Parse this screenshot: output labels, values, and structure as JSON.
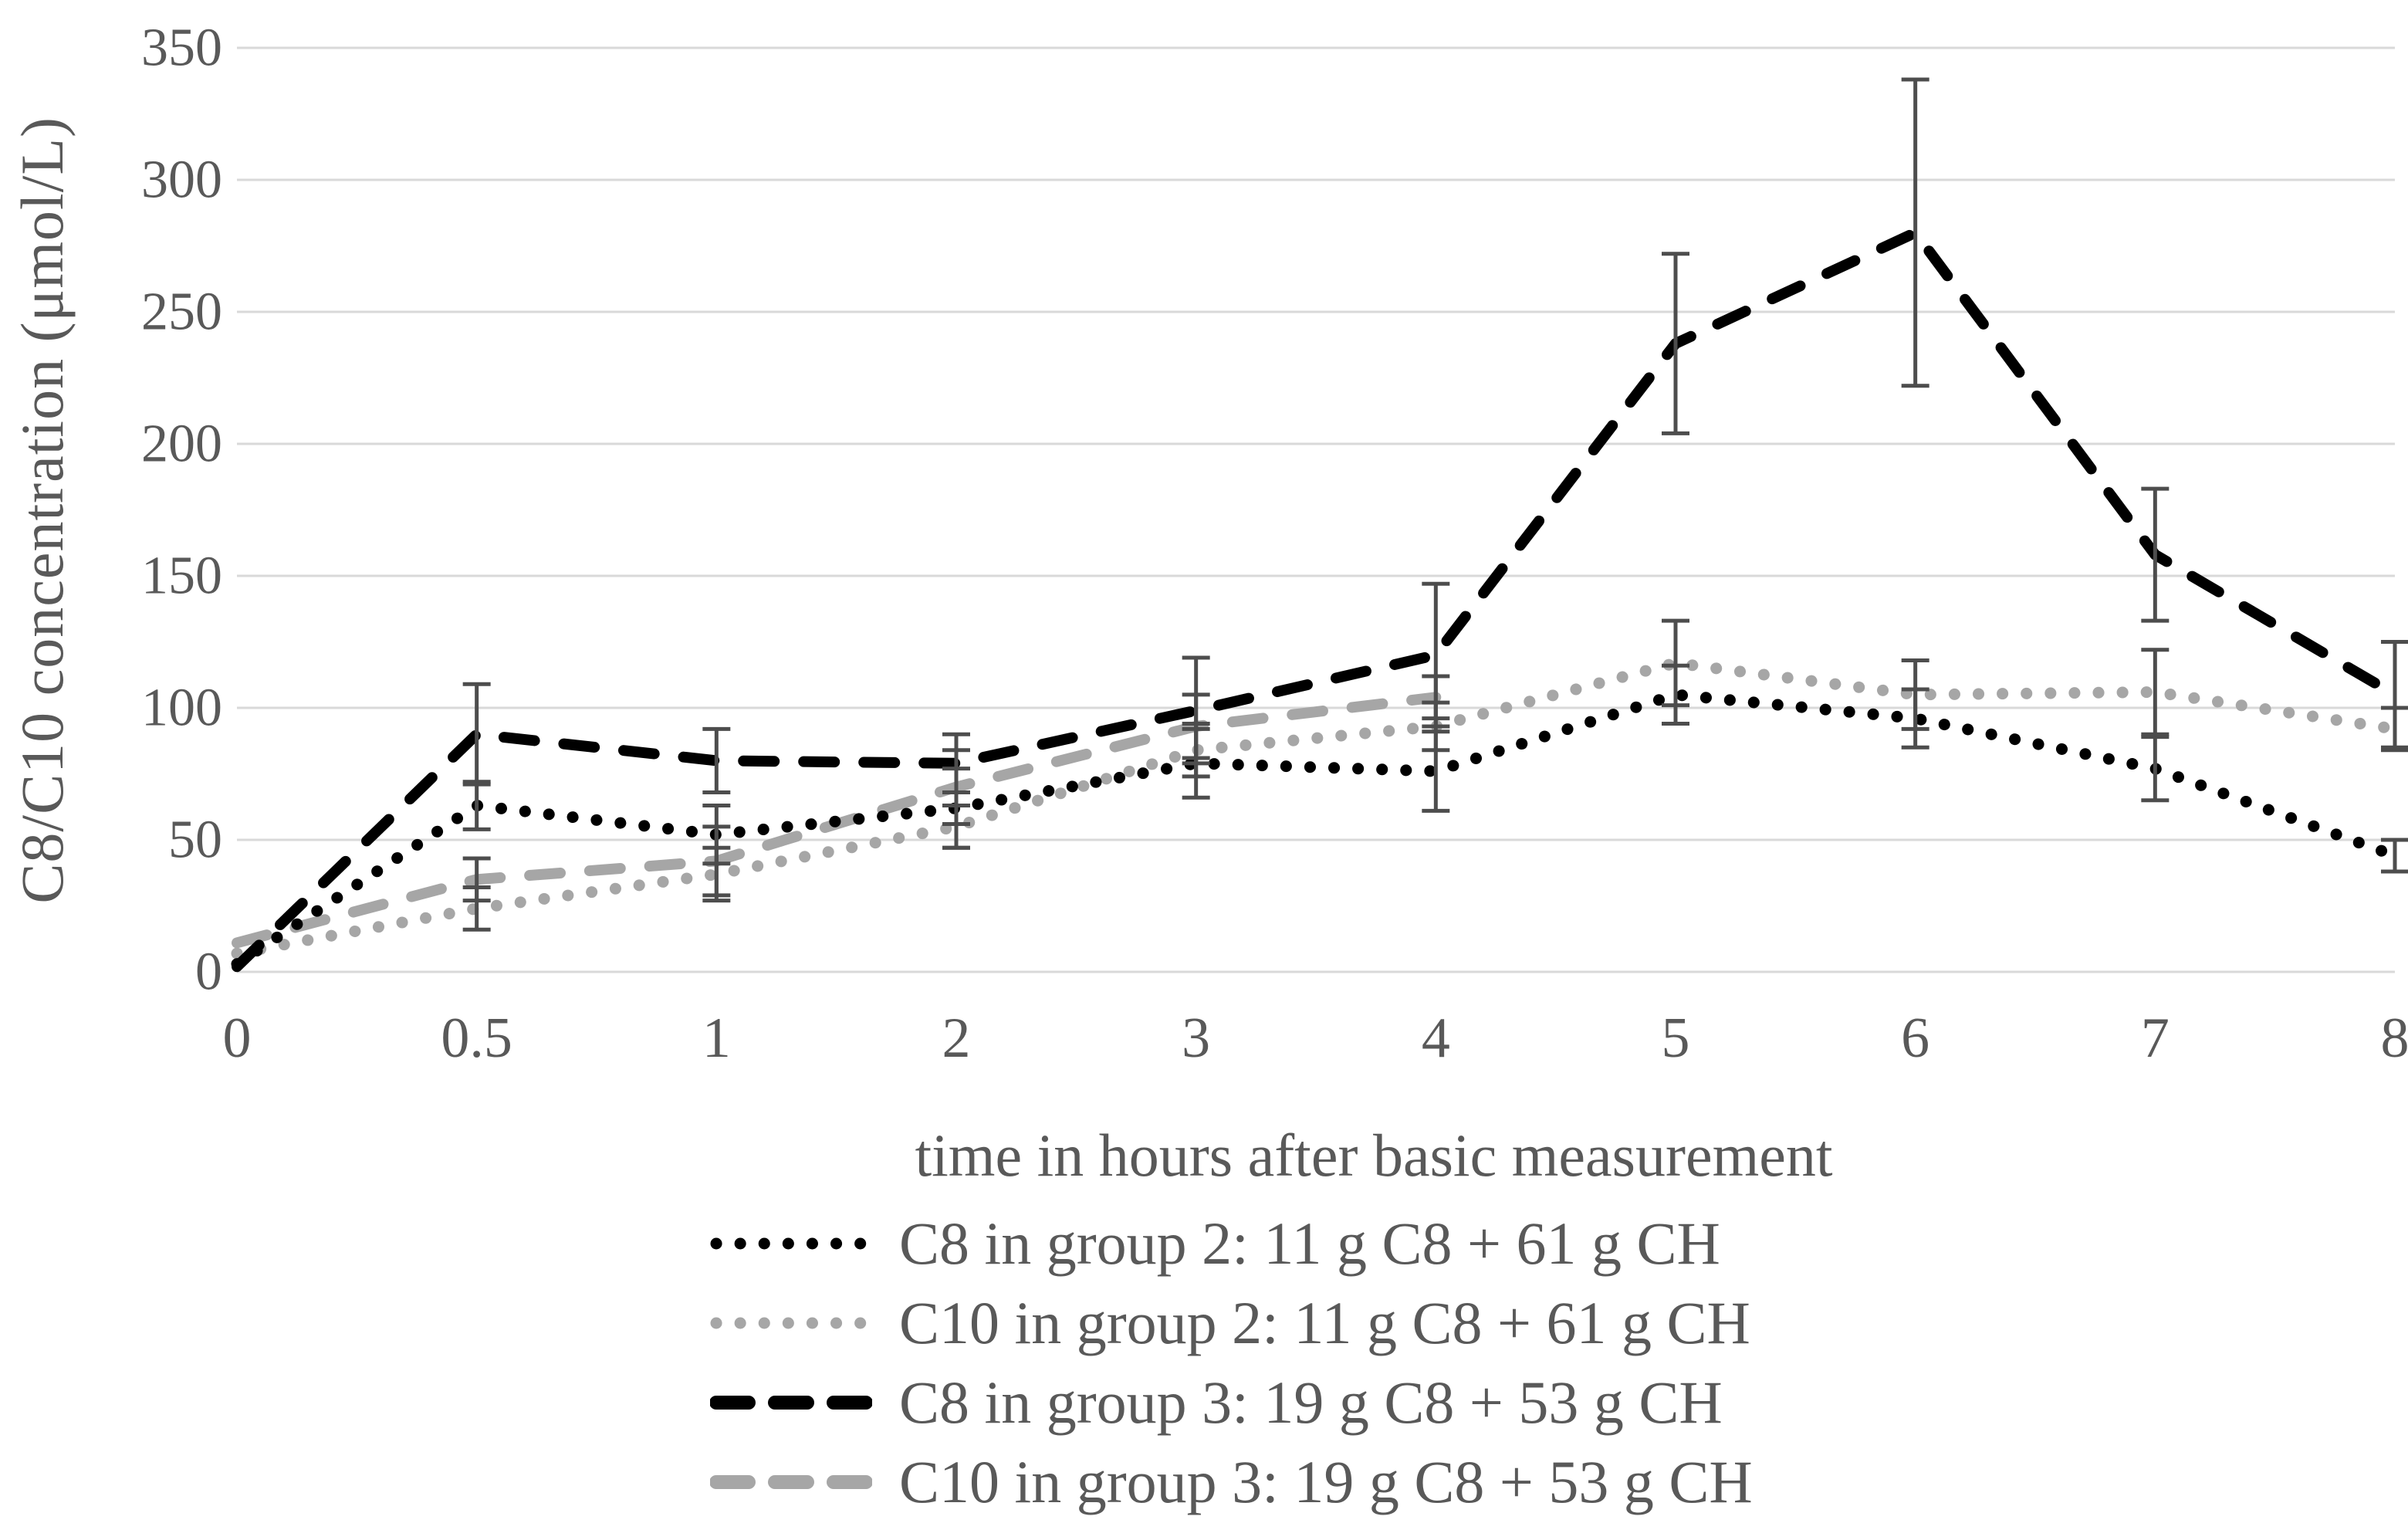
{
  "chart_data": {
    "type": "line",
    "title": "",
    "xlabel": "time in hours after basic measurement",
    "ylabel": "C8/C10 concentration (μmol/L)",
    "ylim": [
      0,
      350
    ],
    "yticks": [
      0,
      50,
      100,
      150,
      200,
      250,
      300,
      350
    ],
    "categories": [
      "0",
      "0.5",
      "1",
      "2",
      "3",
      "4",
      "5",
      "6",
      "7",
      "8"
    ],
    "grid": "horizontal-only",
    "legend_position": "bottom-left",
    "axis_text_color": "#595959",
    "gridline_color": "#d9d9d9",
    "errorbar_color": "#4d4d4d",
    "series": [
      {
        "name": "C8 in group 2: 11 g C8 + 61 g CH",
        "color": "#000000",
        "style": "dotted",
        "values": [
          3,
          63,
          52,
          62,
          79,
          76,
          105,
          96,
          77,
          44
        ],
        "errors": [
          0,
          9,
          11,
          15,
          13,
          15,
          11,
          11,
          12,
          6
        ]
      },
      {
        "name": "C10 in group 2: 11 g C8 + 61 g CH",
        "color": "#a6a6a6",
        "style": "dotted",
        "values": [
          7,
          24,
          37,
          55,
          84,
          93,
          117,
          105,
          106,
          92
        ],
        "errors": [
          0,
          8,
          10,
          8,
          10,
          9,
          16,
          13,
          16,
          8
        ]
      },
      {
        "name": "C8 in group 3: 19 g C8 + 53 g CH",
        "color": "#000000",
        "style": "dashed",
        "values": [
          2,
          90,
          80,
          79,
          99,
          120,
          238,
          280,
          158,
          105
        ],
        "errors": [
          0,
          19,
          12,
          11,
          20,
          27,
          34,
          58,
          25,
          20
        ]
      },
      {
        "name": "C10 in group 3: 19 g C8 + 53 g CH",
        "color": "#a6a6a6",
        "style": "dashed",
        "values": [
          11,
          35,
          42,
          70,
          93,
          104,
          null,
          null,
          null,
          null
        ],
        "errors": [
          0,
          8,
          13,
          14,
          12,
          8,
          null,
          null,
          null,
          null
        ]
      }
    ]
  }
}
